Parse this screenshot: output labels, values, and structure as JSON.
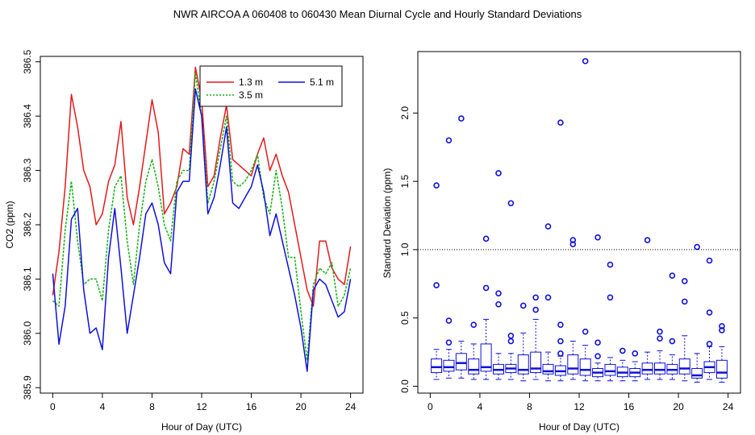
{
  "title": "NWR   AIRCOA A   060408 to 060430   Mean Diurnal Cycle and Hourly Standard Deviations",
  "colors": {
    "red": "#e31a1c",
    "green": "#16b016",
    "blue": "#1010d8",
    "black": "#000000"
  },
  "chart_data": [
    {
      "type": "line",
      "xlabel": "Hour of Day (UTC)",
      "ylabel": "CO2 (ppm)",
      "xlim": [
        -1,
        25
      ],
      "ylim": [
        385.89,
        386.51
      ],
      "xticks": [
        0,
        4,
        8,
        12,
        16,
        20,
        24
      ],
      "yticks": [
        385.9,
        386.0,
        386.1,
        386.2,
        386.3,
        386.4,
        386.5
      ],
      "ytick_labels": [
        "385.9",
        "386.0",
        "386.1",
        "386.2",
        "386.3",
        "386.4",
        "386.5"
      ],
      "legend": [
        "1.3 m",
        "5.1 m",
        "3.5 m"
      ],
      "legend_position": "top-right",
      "series": [
        {
          "name": "1.3 m",
          "color": "#e31a1c",
          "x": [
            0,
            0.5,
            1,
            1.5,
            2,
            2.5,
            3,
            3.5,
            4,
            4.5,
            5,
            5.5,
            6,
            6.5,
            7,
            7.5,
            8,
            8.5,
            9,
            9.5,
            10,
            10.5,
            11,
            11.5,
            12,
            12.5,
            13,
            13.5,
            14,
            14.5,
            15,
            15.5,
            16,
            16.5,
            17,
            17.5,
            18,
            18.5,
            19,
            19.5,
            20,
            20.5,
            21,
            21.5,
            22,
            22.5,
            23,
            23.5,
            24
          ],
          "y": [
            386.07,
            386.15,
            386.27,
            386.44,
            386.38,
            386.3,
            386.27,
            386.2,
            386.22,
            386.28,
            386.31,
            386.39,
            386.25,
            386.2,
            386.27,
            386.35,
            386.43,
            386.37,
            386.22,
            386.24,
            386.27,
            386.34,
            386.33,
            386.49,
            386.43,
            386.27,
            386.29,
            386.36,
            386.42,
            386.32,
            386.31,
            386.3,
            386.29,
            386.33,
            386.36,
            386.3,
            386.33,
            386.29,
            386.26,
            386.2,
            386.14,
            386.08,
            386.05,
            386.17,
            386.17,
            386.12,
            386.1,
            386.09,
            386.16
          ]
        },
        {
          "name": "3.5 m",
          "color": "#16b016",
          "x": [
            0,
            0.5,
            1,
            1.5,
            2,
            2.5,
            3,
            3.5,
            4,
            4.5,
            5,
            5.5,
            6,
            6.5,
            7,
            7.5,
            8,
            8.5,
            9,
            9.5,
            10,
            10.5,
            11,
            11.5,
            12,
            12.5,
            13,
            13.5,
            14,
            14.5,
            15,
            15.5,
            16,
            16.5,
            17,
            17.5,
            18,
            18.5,
            19,
            19.5,
            20,
            20.5,
            21,
            21.5,
            22,
            22.5,
            23,
            23.5,
            24
          ],
          "y": [
            386.06,
            386.05,
            386.19,
            386.28,
            386.17,
            386.09,
            386.1,
            386.1,
            386.06,
            386.19,
            386.27,
            386.29,
            386.17,
            386.09,
            386.2,
            386.28,
            386.32,
            386.27,
            386.2,
            386.17,
            386.28,
            386.3,
            386.3,
            386.48,
            386.4,
            386.24,
            386.28,
            386.34,
            386.4,
            386.28,
            386.27,
            386.28,
            386.3,
            386.33,
            386.25,
            386.22,
            386.3,
            386.23,
            386.14,
            386.14,
            386.04,
            385.95,
            386.09,
            386.12,
            386.11,
            386.13,
            386.05,
            386.07,
            386.12
          ]
        },
        {
          "name": "5.1 m",
          "color": "#1010d8",
          "x": [
            0,
            0.5,
            1,
            1.5,
            2,
            2.5,
            3,
            3.5,
            4,
            4.5,
            5,
            5.5,
            6,
            6.5,
            7,
            7.5,
            8,
            8.5,
            9,
            9.5,
            10,
            10.5,
            11,
            11.5,
            12,
            12.5,
            13,
            13.5,
            14,
            14.5,
            15,
            15.5,
            16,
            16.5,
            17,
            17.5,
            18,
            18.5,
            19,
            19.5,
            20,
            20.5,
            21,
            21.5,
            22,
            22.5,
            23,
            23.5,
            24
          ],
          "y": [
            386.11,
            385.98,
            386.05,
            386.21,
            386.23,
            386.08,
            386.0,
            386.01,
            385.97,
            386.14,
            386.23,
            386.12,
            386.0,
            386.07,
            386.14,
            386.22,
            386.24,
            386.2,
            386.13,
            386.11,
            386.26,
            386.28,
            386.28,
            386.45,
            386.4,
            386.22,
            386.25,
            386.31,
            386.38,
            386.24,
            386.23,
            386.25,
            386.27,
            386.31,
            386.26,
            386.18,
            386.22,
            386.17,
            386.12,
            386.07,
            386.01,
            385.93,
            386.08,
            386.1,
            386.09,
            386.06,
            386.03,
            386.04,
            386.1
          ]
        }
      ]
    },
    {
      "type": "box",
      "xlabel": "Hour of Day (UTC)",
      "ylabel": "Standard Deviation (ppm)",
      "xlim": [
        -1,
        25
      ],
      "ylim": [
        -0.05,
        2.45
      ],
      "xticks": [
        0,
        4,
        8,
        12,
        16,
        20,
        24
      ],
      "yticks": [
        0.0,
        0.5,
        1.0,
        1.5,
        2.0
      ],
      "ytick_labels": [
        "0.0",
        "0.5",
        "1.0",
        "1.5",
        "2.0"
      ],
      "reference_line": 1.0,
      "boxes": [
        {
          "x": 0.5,
          "whisker_low": 0.05,
          "q1": 0.1,
          "median": 0.14,
          "q3": 0.2,
          "whisker_high": 0.27,
          "outliers": [
            0.74,
            1.47
          ]
        },
        {
          "x": 1.5,
          "whisker_low": 0.06,
          "q1": 0.11,
          "median": 0.14,
          "q3": 0.19,
          "whisker_high": 0.27,
          "outliers": [
            0.32,
            0.48,
            1.8
          ]
        },
        {
          "x": 2.5,
          "whisker_low": 0.06,
          "q1": 0.12,
          "median": 0.17,
          "q3": 0.24,
          "whisker_high": 0.33,
          "outliers": [
            1.96
          ]
        },
        {
          "x": 3.5,
          "whisker_low": 0.05,
          "q1": 0.09,
          "median": 0.12,
          "q3": 0.2,
          "whisker_high": 0.31,
          "outliers": [
            0.45
          ]
        },
        {
          "x": 4.5,
          "whisker_low": 0.05,
          "q1": 0.11,
          "median": 0.14,
          "q3": 0.31,
          "whisker_high": 0.49,
          "outliers": [
            0.72,
            1.08
          ]
        },
        {
          "x": 5.5,
          "whisker_low": 0.05,
          "q1": 0.09,
          "median": 0.12,
          "q3": 0.16,
          "whisker_high": 0.24,
          "outliers": [
            0.6,
            0.68,
            1.56
          ]
        },
        {
          "x": 6.5,
          "whisker_low": 0.05,
          "q1": 0.1,
          "median": 0.13,
          "q3": 0.16,
          "whisker_high": 0.24,
          "outliers": [
            0.33,
            0.37,
            1.34
          ]
        },
        {
          "x": 7.5,
          "whisker_low": 0.04,
          "q1": 0.09,
          "median": 0.12,
          "q3": 0.23,
          "whisker_high": 0.39,
          "outliers": [
            0.59
          ]
        },
        {
          "x": 8.5,
          "whisker_low": 0.05,
          "q1": 0.1,
          "median": 0.13,
          "q3": 0.25,
          "whisker_high": 0.49,
          "outliers": [
            0.56,
            0.65
          ]
        },
        {
          "x": 9.5,
          "whisker_low": 0.04,
          "q1": 0.09,
          "median": 0.11,
          "q3": 0.16,
          "whisker_high": 0.25,
          "outliers": [
            0.65,
            1.17
          ]
        },
        {
          "x": 10.5,
          "whisker_low": 0.04,
          "q1": 0.08,
          "median": 0.11,
          "q3": 0.15,
          "whisker_high": 0.22,
          "outliers": [
            0.24,
            0.33,
            0.45,
            1.93
          ]
        },
        {
          "x": 11.5,
          "whisker_low": 0.05,
          "q1": 0.09,
          "median": 0.13,
          "q3": 0.23,
          "whisker_high": 0.33,
          "outliers": [
            1.04,
            1.07
          ]
        },
        {
          "x": 12.5,
          "whisker_low": 0.04,
          "q1": 0.08,
          "median": 0.12,
          "q3": 0.2,
          "whisker_high": 0.3,
          "outliers": [
            0.4,
            2.38
          ]
        },
        {
          "x": 13.5,
          "whisker_low": 0.04,
          "q1": 0.07,
          "median": 0.1,
          "q3": 0.13,
          "whisker_high": 0.17,
          "outliers": [
            0.22,
            0.32,
            1.09
          ]
        },
        {
          "x": 14.5,
          "whisker_low": 0.04,
          "q1": 0.08,
          "median": 0.11,
          "q3": 0.16,
          "whisker_high": 0.21,
          "outliers": [
            0.65,
            0.89
          ]
        },
        {
          "x": 15.5,
          "whisker_low": 0.04,
          "q1": 0.07,
          "median": 0.1,
          "q3": 0.14,
          "whisker_high": 0.19,
          "outliers": [
            0.26
          ]
        },
        {
          "x": 16.5,
          "whisker_low": 0.04,
          "q1": 0.07,
          "median": 0.1,
          "q3": 0.13,
          "whisker_high": 0.18,
          "outliers": [
            0.24
          ]
        },
        {
          "x": 17.5,
          "whisker_low": 0.05,
          "q1": 0.09,
          "median": 0.12,
          "q3": 0.17,
          "whisker_high": 0.25,
          "outliers": [
            1.07
          ]
        },
        {
          "x": 18.5,
          "whisker_low": 0.05,
          "q1": 0.09,
          "median": 0.12,
          "q3": 0.17,
          "whisker_high": 0.26,
          "outliers": [
            0.35,
            0.4
          ]
        },
        {
          "x": 19.5,
          "whisker_low": 0.05,
          "q1": 0.09,
          "median": 0.12,
          "q3": 0.16,
          "whisker_high": 0.23,
          "outliers": [
            0.33,
            0.81
          ]
        },
        {
          "x": 20.5,
          "whisker_low": 0.04,
          "q1": 0.09,
          "median": 0.13,
          "q3": 0.2,
          "whisker_high": 0.37,
          "outliers": [
            0.62,
            0.77
          ]
        },
        {
          "x": 21.5,
          "whisker_low": 0.03,
          "q1": 0.06,
          "median": 0.08,
          "q3": 0.13,
          "whisker_high": 0.24,
          "outliers": [
            1.02
          ]
        },
        {
          "x": 22.5,
          "whisker_low": 0.05,
          "q1": 0.1,
          "median": 0.14,
          "q3": 0.18,
          "whisker_high": 0.29,
          "outliers": [
            0.31,
            0.54,
            0.92
          ]
        },
        {
          "x": 23.5,
          "whisker_low": 0.03,
          "q1": 0.06,
          "median": 0.1,
          "q3": 0.19,
          "whisker_high": 0.29,
          "outliers": [
            0.41,
            0.44
          ]
        }
      ]
    }
  ]
}
